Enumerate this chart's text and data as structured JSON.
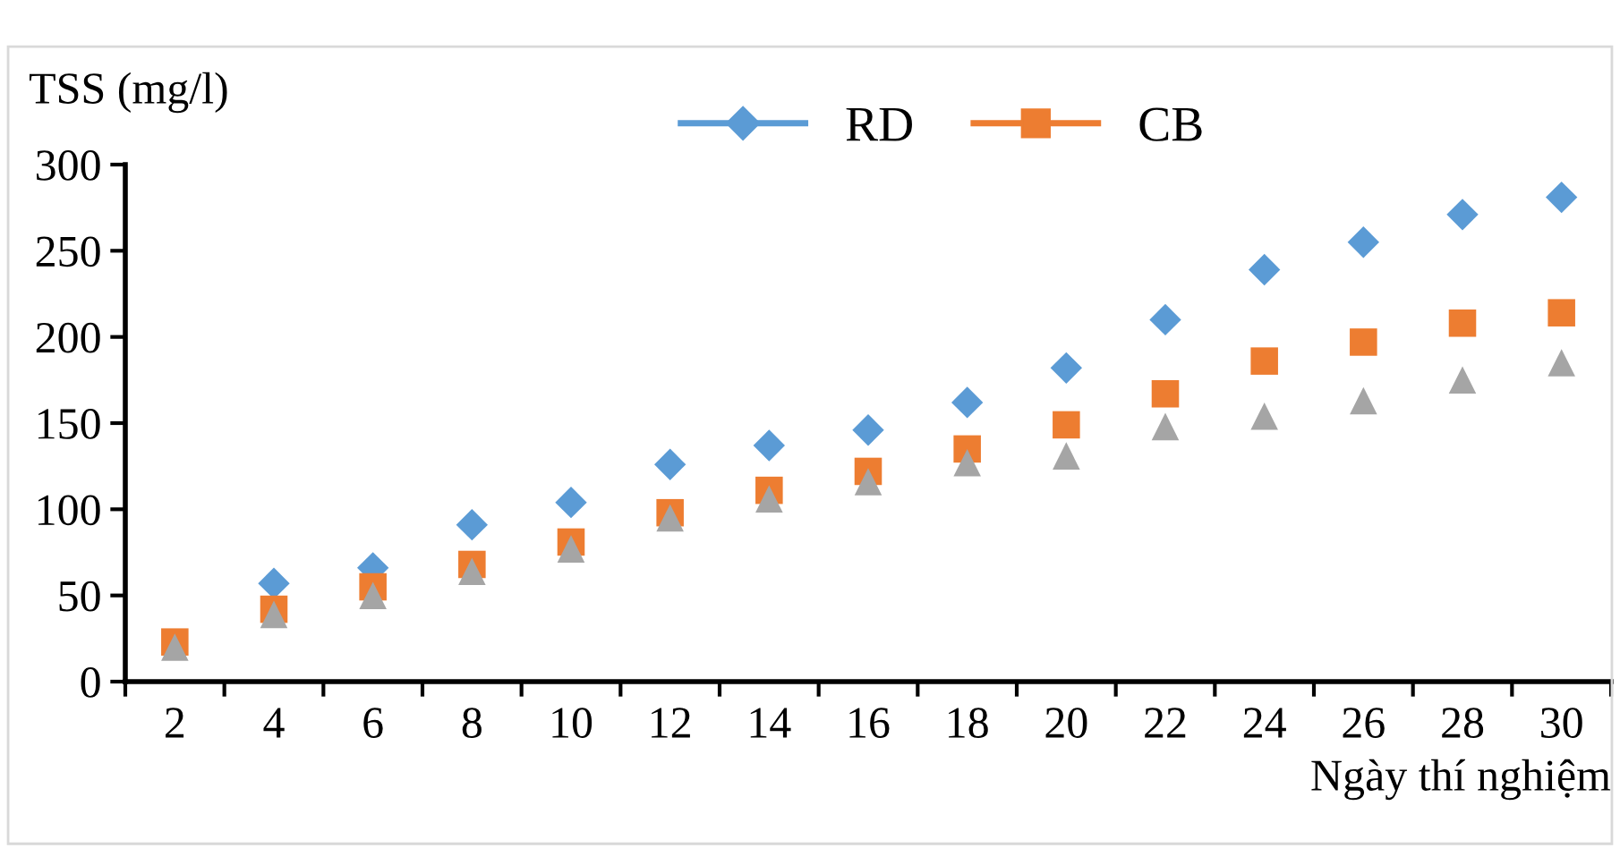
{
  "chart_data": {
    "type": "scatter",
    "ylabel": "TSS (mg/l)",
    "xlabel": "Ngày thí nghiệm",
    "categories": [
      "2",
      "4",
      "6",
      "8",
      "10",
      "12",
      "14",
      "16",
      "18",
      "20",
      "22",
      "24",
      "26",
      "28",
      "30"
    ],
    "series": [
      {
        "name": "RD",
        "color": "#5b9bd5",
        "marker": "diamond",
        "values": [
          null,
          57,
          66,
          91,
          104,
          126,
          137,
          146,
          162,
          182,
          210,
          239,
          255,
          271,
          281
        ]
      },
      {
        "name": "CB",
        "color": "#ed7d31",
        "marker": "square",
        "values": [
          23,
          42,
          55,
          68,
          81,
          98,
          111,
          122,
          135,
          149,
          167,
          186,
          197,
          208,
          214
        ]
      },
      {
        "color": "#a5a5a5",
        "marker": "triangle",
        "values": [
          20,
          39,
          50,
          64,
          77,
          95,
          106,
          116,
          127,
          131,
          148,
          154,
          163,
          175,
          185
        ]
      }
    ],
    "ylim": [
      0,
      300
    ],
    "yticks": [
      0,
      50,
      100,
      150,
      200,
      250,
      300
    ],
    "grid": false,
    "legend": "top"
  }
}
